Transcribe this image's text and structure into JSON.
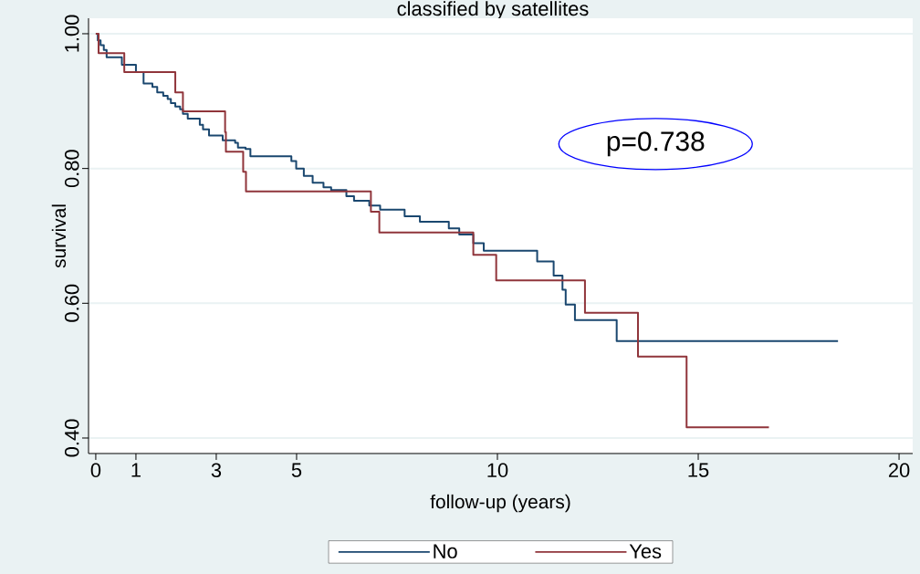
{
  "chart_data": {
    "type": "step",
    "title": "classified by satellites",
    "xlabel": "follow-up (years)",
    "ylabel": "survival",
    "annotations": [
      "p=0.738"
    ],
    "xlim": [
      -0.18,
      20.34
    ],
    "ylim": [
      0.377,
      1.023
    ],
    "xticks": [
      0,
      1,
      3,
      5,
      10,
      15,
      20
    ],
    "yticks": [
      {
        "value": 0.4,
        "label": "0.40"
      },
      {
        "value": 0.6,
        "label": "0.60"
      },
      {
        "value": 0.8,
        "label": "0.80"
      },
      {
        "value": 1.0,
        "label": "1.00"
      }
    ],
    "grid": "y",
    "legend": "bottom",
    "line_style": "solid",
    "series": [
      {
        "name": "No",
        "color": "#1a476f",
        "x": [
          0,
          0.05,
          0.12,
          0.2,
          0.27,
          0.65,
          1.0,
          1.19,
          1.41,
          1.53,
          1.68,
          1.79,
          1.87,
          1.98,
          2.1,
          2.17,
          2.29,
          2.59,
          2.67,
          2.82,
          3.16,
          3.47,
          3.54,
          3.73,
          3.85,
          4.87,
          4.99,
          5.18,
          5.4,
          5.67,
          5.86,
          6.24,
          6.43,
          6.81,
          7.08,
          7.69,
          8.07,
          8.79,
          9.05,
          9.4,
          9.66,
          10.99,
          11.4,
          11.62,
          11.7,
          11.93,
          12.97,
          18.48
        ],
        "values": [
          1.0,
          0.99,
          0.983,
          0.976,
          0.965,
          0.954,
          0.943,
          0.926,
          0.921,
          0.913,
          0.908,
          0.903,
          0.897,
          0.892,
          0.888,
          0.881,
          0.874,
          0.865,
          0.858,
          0.849,
          0.842,
          0.838,
          0.831,
          0.829,
          0.818,
          0.811,
          0.8,
          0.789,
          0.779,
          0.772,
          0.768,
          0.759,
          0.752,
          0.745,
          0.739,
          0.729,
          0.721,
          0.711,
          0.702,
          0.689,
          0.678,
          0.662,
          0.641,
          0.62,
          0.598,
          0.575,
          0.544,
          0.544
        ]
      },
      {
        "name": "Yes",
        "color": "#90353b",
        "x": [
          0,
          0.07,
          0.71,
          1.98,
          2.17,
          3.22,
          3.24,
          3.67,
          3.74,
          6.85,
          7.06,
          9.4,
          9.97,
          12.18,
          13.5,
          14.71,
          16.76
        ],
        "values": [
          1.0,
          0.971,
          0.943,
          0.913,
          0.885,
          0.854,
          0.825,
          0.795,
          0.766,
          0.736,
          0.705,
          0.672,
          0.634,
          0.586,
          0.521,
          0.416,
          0.416
        ]
      }
    ]
  }
}
